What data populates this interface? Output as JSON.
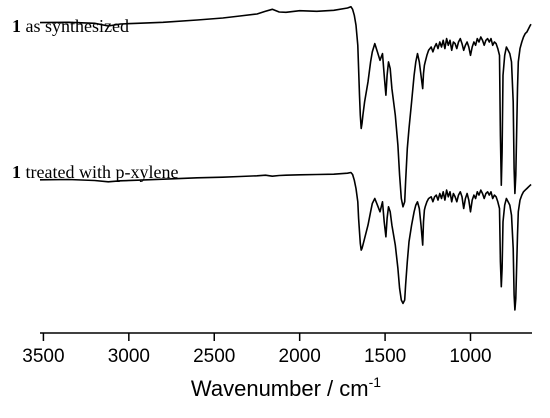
{
  "chart_data": {
    "type": "line",
    "xlabel": "Wavenumber / cm",
    "xlabel_superscript": "-1",
    "xlim": [
      3520,
      640
    ],
    "x_reversed": true,
    "x_ticks": [
      {
        "value": 3500,
        "label": "3500"
      },
      {
        "value": 3000,
        "label": "3000"
      },
      {
        "value": 2500,
        "label": "2500"
      },
      {
        "value": 2000,
        "label": "2000"
      },
      {
        "value": 1500,
        "label": "1500"
      },
      {
        "value": 1000,
        "label": "1000"
      }
    ],
    "y_axis_shown": false,
    "y_units": "arbitrary (stacked transmittance)",
    "line_color": "#000000",
    "series": [
      {
        "name_bold": "1",
        "name_rest": " as synthesized",
        "x": [
          3520,
          3350,
          3200,
          3120,
          3050,
          2950,
          2800,
          2600,
          2450,
          2350,
          2250,
          2200,
          2160,
          2120,
          2080,
          2000,
          1900,
          1800,
          1720,
          1700,
          1690,
          1680,
          1670,
          1660,
          1655,
          1650,
          1645,
          1640,
          1635,
          1630,
          1620,
          1600,
          1585,
          1575,
          1560,
          1545,
          1530,
          1515,
          1505,
          1495,
          1488,
          1480,
          1470,
          1460,
          1440,
          1425,
          1415,
          1405,
          1395,
          1385,
          1380,
          1370,
          1360,
          1345,
          1330,
          1320,
          1310,
          1300,
          1290,
          1280,
          1275,
          1270,
          1265,
          1255,
          1245,
          1230,
          1220,
          1210,
          1200,
          1190,
          1180,
          1170,
          1160,
          1150,
          1140,
          1130,
          1120,
          1110,
          1100,
          1090,
          1080,
          1070,
          1060,
          1050,
          1040,
          1030,
          1020,
          1010,
          1000,
          990,
          980,
          970,
          960,
          950,
          940,
          930,
          920,
          910,
          900,
          890,
          880,
          870,
          860,
          850,
          840,
          830,
          825,
          820,
          815,
          810,
          800,
          790,
          780,
          770,
          760,
          750,
          745,
          740,
          735,
          730,
          725,
          720,
          710,
          700,
          690,
          680,
          670,
          660,
          650,
          645
        ],
        "y": [
          93.8,
          93.9,
          93.6,
          92.8,
          93.4,
          93.6,
          93.9,
          94.6,
          95.2,
          95.8,
          96.4,
          97.2,
          97.8,
          97.0,
          96.9,
          97.4,
          97.2,
          97.5,
          98.2,
          98.6,
          97.8,
          96.0,
          93.0,
          87.0,
          80.0,
          72.0,
          66.0,
          62.0,
          63.5,
          66.0,
          70.0,
          76.0,
          82.0,
          85.0,
          87.5,
          85.0,
          82.5,
          84.5,
          78.0,
          72.0,
          78.0,
          82.0,
          80.0,
          74.0,
          66.0,
          57.0,
          48.0,
          41.0,
          38.5,
          40.0,
          46.0,
          56.0,
          62.0,
          70.0,
          78.0,
          82.0,
          84.5,
          82.0,
          78.0,
          74.0,
          78.5,
          81.0,
          82.0,
          84.0,
          85.5,
          86.5,
          85.0,
          86.5,
          87.5,
          86.0,
          88.0,
          86.5,
          88.5,
          86.0,
          89.0,
          87.0,
          88.5,
          85.5,
          88.0,
          87.5,
          86.0,
          88.0,
          89.0,
          87.5,
          85.5,
          87.0,
          88.0,
          86.5,
          84.0,
          86.5,
          88.0,
          87.0,
          89.0,
          88.0,
          89.5,
          88.5,
          87.0,
          88.5,
          89.0,
          88.0,
          89.0,
          87.0,
          88.0,
          87.5,
          86.0,
          84.0,
          60.0,
          45.0,
          55.0,
          78.0,
          84.0,
          86.5,
          85.5,
          84.5,
          82.0,
          70.0,
          50.0,
          42.5,
          48.0,
          60.0,
          74.0,
          82.0,
          86.0,
          88.0,
          89.5,
          90.5,
          91.0,
          92.0,
          93.0,
          93.3
        ]
      },
      {
        "name_bold": "1",
        "name_rest": " treated with p-xylene",
        "x": [
          3520,
          3350,
          3200,
          3120,
          3050,
          2950,
          2800,
          2600,
          2450,
          2350,
          2250,
          2200,
          2160,
          2120,
          2080,
          2000,
          1900,
          1800,
          1720,
          1700,
          1690,
          1680,
          1670,
          1660,
          1655,
          1650,
          1645,
          1640,
          1635,
          1630,
          1620,
          1600,
          1585,
          1575,
          1560,
          1545,
          1530,
          1515,
          1505,
          1495,
          1488,
          1480,
          1470,
          1460,
          1440,
          1425,
          1415,
          1405,
          1395,
          1385,
          1380,
          1370,
          1360,
          1345,
          1330,
          1320,
          1310,
          1300,
          1290,
          1280,
          1275,
          1270,
          1265,
          1255,
          1245,
          1230,
          1220,
          1210,
          1200,
          1190,
          1180,
          1170,
          1160,
          1150,
          1140,
          1130,
          1120,
          1110,
          1100,
          1090,
          1080,
          1070,
          1060,
          1050,
          1040,
          1030,
          1020,
          1010,
          1000,
          990,
          980,
          970,
          960,
          950,
          940,
          930,
          920,
          910,
          900,
          890,
          880,
          870,
          860,
          850,
          840,
          830,
          825,
          820,
          815,
          810,
          800,
          790,
          780,
          770,
          760,
          750,
          745,
          740,
          735,
          730,
          725,
          720,
          710,
          700,
          690,
          680,
          670,
          660,
          650,
          645
        ],
        "y": [
          46.6,
          46.7,
          46.4,
          46.0,
          46.3,
          46.5,
          46.8,
          47.2,
          47.4,
          47.6,
          47.8,
          48.0,
          47.7,
          47.9,
          48.0,
          48.1,
          48.2,
          48.3,
          48.6,
          48.8,
          48.2,
          46.5,
          44.0,
          40.0,
          35.0,
          31.0,
          27.5,
          25.5,
          26.0,
          27.0,
          29.0,
          33.0,
          37.0,
          39.5,
          41.0,
          39.0,
          37.0,
          40.0,
          34.0,
          29.5,
          35.0,
          38.5,
          37.0,
          33.0,
          27.0,
          20.0,
          14.0,
          10.5,
          9.5,
          10.5,
          15.0,
          22.0,
          28.0,
          33.0,
          37.0,
          39.0,
          40.0,
          38.0,
          33.0,
          27.0,
          34.0,
          37.5,
          38.5,
          40.0,
          41.0,
          41.5,
          40.0,
          41.5,
          42.0,
          40.5,
          42.5,
          41.0,
          43.0,
          40.5,
          43.5,
          41.5,
          43.0,
          40.0,
          42.5,
          41.5,
          40.0,
          42.0,
          43.0,
          41.5,
          38.0,
          41.0,
          42.5,
          40.5,
          37.0,
          40.5,
          42.0,
          41.0,
          43.0,
          42.0,
          43.5,
          42.5,
          41.0,
          42.5,
          43.0,
          42.0,
          43.0,
          41.0,
          42.0,
          41.5,
          40.0,
          38.0,
          22.0,
          14.5,
          20.0,
          34.0,
          39.0,
          41.0,
          40.0,
          39.0,
          36.0,
          26.0,
          12.0,
          7.5,
          11.0,
          20.0,
          30.0,
          37.0,
          40.5,
          42.0,
          43.0,
          43.5,
          44.0,
          44.5,
          45.0,
          45.2
        ]
      }
    ]
  }
}
